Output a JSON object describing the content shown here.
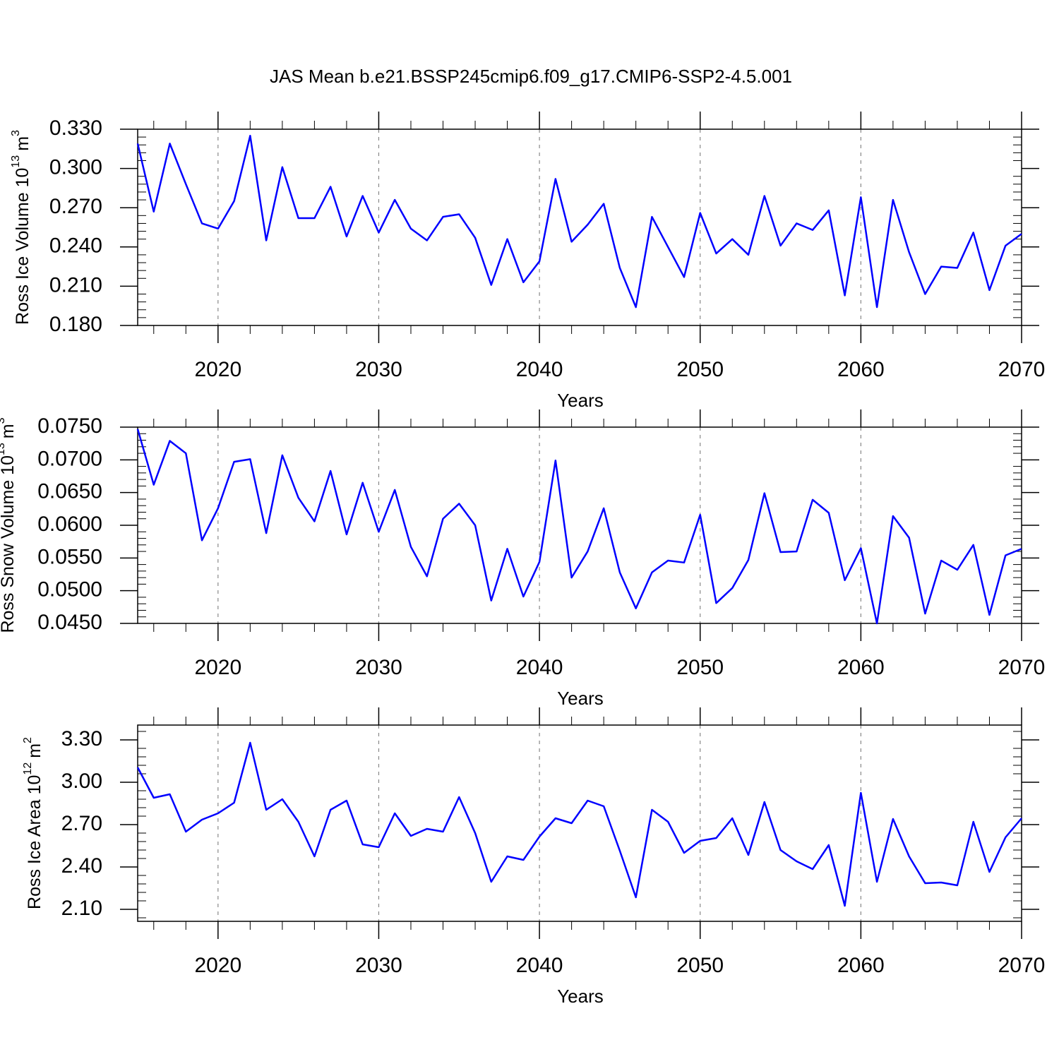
{
  "chart_data": [
    {
      "type": "line",
      "title": "JAS Mean b.e21.BSSP245cmip6.f09_g17.CMIP6-SSP2-4.5.001",
      "ylabel": "Ross Ice Volume 10",
      "ylabel_exponent": "13",
      "ylabel_unit": "m",
      "ylabel_unit_exponent": "3",
      "xlabel": "Years",
      "color": "#0000ff",
      "grid": true,
      "x": [
        2015,
        2016,
        2017,
        2018,
        2019,
        2020,
        2021,
        2022,
        2023,
        2024,
        2025,
        2026,
        2027,
        2028,
        2029,
        2030,
        2031,
        2032,
        2033,
        2034,
        2035,
        2036,
        2037,
        2038,
        2039,
        2040,
        2041,
        2042,
        2043,
        2044,
        2045,
        2046,
        2047,
        2048,
        2049,
        2050,
        2051,
        2052,
        2053,
        2054,
        2055,
        2056,
        2057,
        2058,
        2059,
        2060,
        2061,
        2062,
        2063,
        2064,
        2065,
        2066,
        2067,
        2068,
        2069,
        2070
      ],
      "values": [
        0.319,
        0.267,
        0.319,
        0.288,
        0.258,
        0.254,
        0.275,
        0.325,
        0.245,
        0.301,
        0.262,
        0.262,
        0.286,
        0.248,
        0.279,
        0.251,
        0.276,
        0.254,
        0.245,
        0.263,
        0.265,
        0.247,
        0.211,
        0.246,
        0.213,
        0.229,
        0.292,
        0.244,
        0.257,
        0.273,
        0.224,
        0.194,
        0.263,
        0.24,
        0.217,
        0.266,
        0.235,
        0.246,
        0.234,
        0.279,
        0.241,
        0.258,
        0.253,
        0.268,
        0.203,
        0.278,
        0.194,
        0.276,
        0.236,
        0.204,
        0.225,
        0.224,
        0.251,
        0.207,
        0.241,
        0.25
      ],
      "xlim": [
        2015,
        2070
      ],
      "xticks": [
        2020,
        2030,
        2040,
        2050,
        2060,
        2070
      ],
      "ylim": [
        0.18,
        0.33
      ],
      "yticks": [
        {
          "value": 0.18,
          "label": "0.180"
        },
        {
          "value": 0.21,
          "label": "0.210"
        },
        {
          "value": 0.24,
          "label": "0.240"
        },
        {
          "value": 0.27,
          "label": "0.270"
        },
        {
          "value": 0.3,
          "label": "0.300"
        },
        {
          "value": 0.33,
          "label": "0.330"
        }
      ]
    },
    {
      "type": "line",
      "ylabel": "Ross Snow Volume 10",
      "ylabel_exponent": "13",
      "ylabel_unit": "m",
      "ylabel_unit_exponent": "3",
      "xlabel": "Years",
      "color": "#0000ff",
      "grid": true,
      "x": [
        2015,
        2016,
        2017,
        2018,
        2019,
        2020,
        2021,
        2022,
        2023,
        2024,
        2025,
        2026,
        2027,
        2028,
        2029,
        2030,
        2031,
        2032,
        2033,
        2034,
        2035,
        2036,
        2037,
        2038,
        2039,
        2040,
        2041,
        2042,
        2043,
        2044,
        2045,
        2046,
        2047,
        2048,
        2049,
        2050,
        2051,
        2052,
        2053,
        2054,
        2055,
        2056,
        2057,
        2058,
        2059,
        2060,
        2061,
        2062,
        2063,
        2064,
        2065,
        2066,
        2067,
        2068,
        2069,
        2070
      ],
      "values": [
        0.0747,
        0.0662,
        0.0729,
        0.071,
        0.0577,
        0.0626,
        0.0697,
        0.0701,
        0.0588,
        0.0707,
        0.0642,
        0.0606,
        0.0683,
        0.0586,
        0.0665,
        0.059,
        0.0654,
        0.0567,
        0.0522,
        0.061,
        0.0633,
        0.06,
        0.0485,
        0.0564,
        0.0491,
        0.0544,
        0.0699,
        0.052,
        0.056,
        0.0626,
        0.0528,
        0.0473,
        0.0528,
        0.0546,
        0.0543,
        0.0616,
        0.0481,
        0.0504,
        0.0547,
        0.0649,
        0.0559,
        0.056,
        0.0639,
        0.0619,
        0.0516,
        0.0565,
        0.045,
        0.0614,
        0.0581,
        0.0465,
        0.0546,
        0.0532,
        0.057,
        0.0463,
        0.0554,
        0.0564
      ],
      "xlim": [
        2015,
        2070
      ],
      "xticks": [
        2020,
        2030,
        2040,
        2050,
        2060,
        2070
      ],
      "ylim": [
        0.045,
        0.075
      ],
      "yticks": [
        {
          "value": 0.045,
          "label": "0.0450"
        },
        {
          "value": 0.05,
          "label": "0.0500"
        },
        {
          "value": 0.055,
          "label": "0.0550"
        },
        {
          "value": 0.06,
          "label": "0.0600"
        },
        {
          "value": 0.065,
          "label": "0.0650"
        },
        {
          "value": 0.07,
          "label": "0.0700"
        },
        {
          "value": 0.075,
          "label": "0.0750"
        }
      ]
    },
    {
      "type": "line",
      "ylabel": "Ross Ice Area 10",
      "ylabel_exponent": "12",
      "ylabel_unit": "m",
      "ylabel_unit_exponent": "2",
      "xlabel": "Years",
      "color": "#0000ff",
      "grid": true,
      "x": [
        2015,
        2016,
        2017,
        2018,
        2019,
        2020,
        2021,
        2022,
        2023,
        2024,
        2025,
        2026,
        2027,
        2028,
        2029,
        2030,
        2031,
        2032,
        2033,
        2034,
        2035,
        2036,
        2037,
        2038,
        2039,
        2040,
        2041,
        2042,
        2043,
        2044,
        2045,
        2046,
        2047,
        2048,
        2049,
        2050,
        2051,
        2052,
        2053,
        2054,
        2055,
        2056,
        2057,
        2058,
        2059,
        2060,
        2061,
        2062,
        2063,
        2064,
        2065,
        2066,
        2067,
        2068,
        2069,
        2070
      ],
      "values": [
        3.105,
        2.89,
        2.915,
        2.65,
        2.735,
        2.78,
        2.855,
        3.28,
        2.805,
        2.88,
        2.72,
        2.475,
        2.805,
        2.87,
        2.56,
        2.54,
        2.78,
        2.62,
        2.67,
        2.65,
        2.895,
        2.64,
        2.295,
        2.475,
        2.45,
        2.615,
        2.745,
        2.71,
        2.87,
        2.83,
        2.515,
        2.185,
        2.805,
        2.72,
        2.5,
        2.585,
        2.605,
        2.745,
        2.485,
        2.86,
        2.52,
        2.44,
        2.385,
        2.555,
        2.125,
        2.925,
        2.295,
        2.74,
        2.475,
        2.285,
        2.29,
        2.27,
        2.72,
        2.365,
        2.61,
        2.745
      ],
      "xlim": [
        2015,
        2070
      ],
      "xticks": [
        2020,
        2030,
        2040,
        2050,
        2060,
        2070
      ],
      "ylim": [
        2.015,
        3.405
      ],
      "yticks": [
        {
          "value": 2.1,
          "label": "2.10"
        },
        {
          "value": 2.4,
          "label": "2.40"
        },
        {
          "value": 2.7,
          "label": "2.70"
        },
        {
          "value": 3.0,
          "label": "3.00"
        },
        {
          "value": 3.3,
          "label": "3.30"
        }
      ]
    }
  ]
}
